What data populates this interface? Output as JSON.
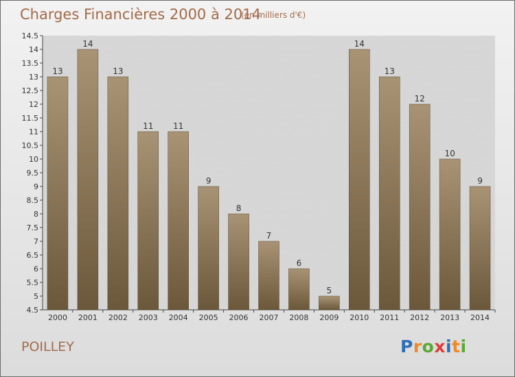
{
  "header": {
    "title": "Charges Financières 2000 à 2014",
    "subtitle": "(en milliers d'€)"
  },
  "footer": {
    "place": "POILLEY",
    "brand": "Proxiti"
  },
  "colors": {
    "accent": "#a26b4a",
    "bar_top": "#a89375",
    "bar_bottom": "#6b5739",
    "axis": "#444444",
    "background_top": "#f2f2f2",
    "background_bottom": "#dcdcdc"
  },
  "chart_data": {
    "type": "bar",
    "categories": [
      "2000",
      "2001",
      "2002",
      "2003",
      "2004",
      "2005",
      "2006",
      "2007",
      "2008",
      "2009",
      "2010",
      "2011",
      "2012",
      "2013",
      "2014"
    ],
    "values": [
      13,
      14,
      13,
      11,
      11,
      9,
      8,
      7,
      6,
      5,
      14,
      13,
      12,
      10,
      9
    ],
    "value_labels": [
      "13",
      "14",
      "13",
      "11",
      "11",
      "9",
      "8",
      "7",
      "6",
      "5",
      "14",
      "13",
      "12",
      "10",
      "9"
    ],
    "title": "Charges Financières 2000 à 2014",
    "subtitle": "(en milliers d'€)",
    "xlabel": "",
    "ylabel": "",
    "ylim": [
      4.5,
      14.5
    ],
    "yticks": [
      "4.5",
      "5",
      "5.5",
      "6",
      "6.5",
      "7",
      "7.5",
      "8",
      "8.5",
      "9",
      "9.5",
      "10",
      "10.5",
      "11",
      "11.5",
      "12",
      "12.5",
      "13",
      "13.5",
      "14",
      "14.5"
    ],
    "grid": false,
    "legend": "none"
  }
}
